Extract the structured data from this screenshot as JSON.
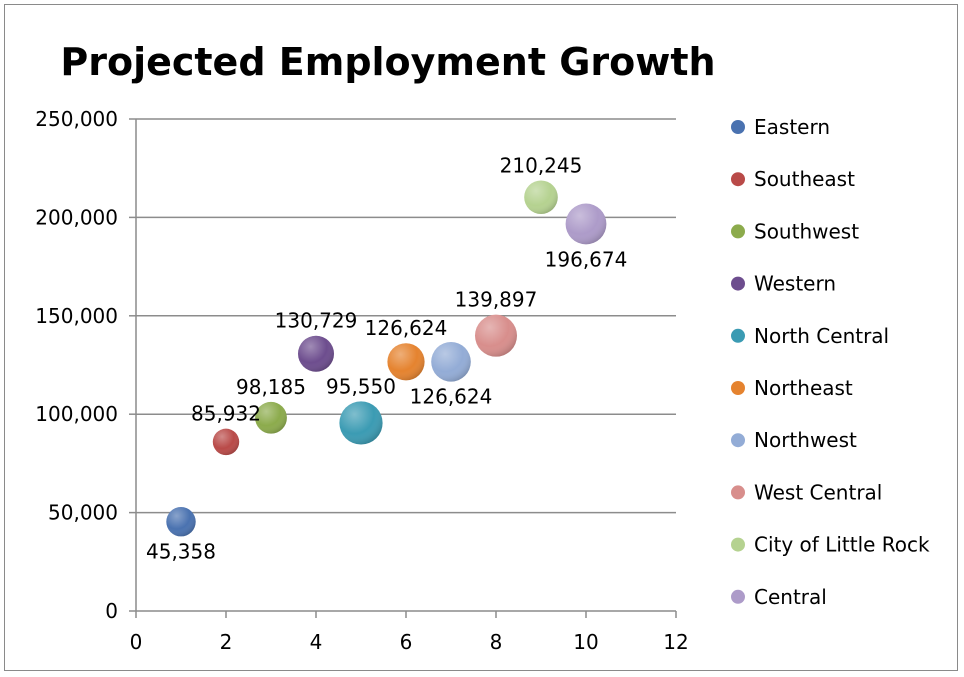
{
  "chart_data": {
    "type": "bubble",
    "title": "Projected Employment Growth",
    "xlabel": "",
    "ylabel": "",
    "xlim": [
      0,
      12
    ],
    "ylim": [
      0,
      250000
    ],
    "x_ticks": [
      0,
      2,
      4,
      6,
      8,
      10,
      12
    ],
    "y_ticks": [
      0,
      50000,
      100000,
      150000,
      200000,
      250000
    ],
    "x_tick_labels": [
      "0",
      "2",
      "4",
      "6",
      "8",
      "10",
      "12"
    ],
    "y_tick_labels": [
      "0",
      "50,000",
      "100,000",
      "150,000",
      "200,000",
      "250,000"
    ],
    "grid": "horizontal",
    "legend_position": "right",
    "series": [
      {
        "name": "Eastern",
        "x": 1,
        "y": 45358,
        "label": "45,358",
        "label_position": "below",
        "color": "#4a72b0",
        "size": 0.39
      },
      {
        "name": "Southeast",
        "x": 2,
        "y": 85932,
        "label": "85,932",
        "label_position": "above",
        "color": "#b94a48",
        "size": 0.34
      },
      {
        "name": "Southwest",
        "x": 3,
        "y": 98185,
        "label": "98,185",
        "label_position": "above",
        "color": "#8cab4c",
        "size": 0.43
      },
      {
        "name": "Western",
        "x": 4,
        "y": 130729,
        "label": "130,729",
        "label_position": "above",
        "color": "#6d4d8e",
        "size": 0.5
      },
      {
        "name": "North Central",
        "x": 5,
        "y": 95550,
        "label": "95,550",
        "label_position": "above",
        "color": "#3b9bb3",
        "size": 0.62
      },
      {
        "name": "Northeast",
        "x": 6,
        "y": 126624,
        "label": "126,624",
        "label_position": "above",
        "color": "#e5832f",
        "size": 0.52
      },
      {
        "name": "Northwest",
        "x": 7,
        "y": 126624,
        "label": "126,624",
        "label_position": "below",
        "color": "#93acd6",
        "size": 0.56
      },
      {
        "name": "West Central",
        "x": 8,
        "y": 139897,
        "label": "139,897",
        "label_position": "above",
        "color": "#d88e8c",
        "size": 0.6
      },
      {
        "name": "City of Little Rock",
        "x": 9,
        "y": 210245,
        "label": "210,245",
        "label_position": "above",
        "color": "#b5d290",
        "size": 0.46
      },
      {
        "name": "Central",
        "x": 10,
        "y": 196674,
        "label": "196,674",
        "label_position": "below",
        "color": "#ad9bc9",
        "size": 0.58
      }
    ]
  }
}
